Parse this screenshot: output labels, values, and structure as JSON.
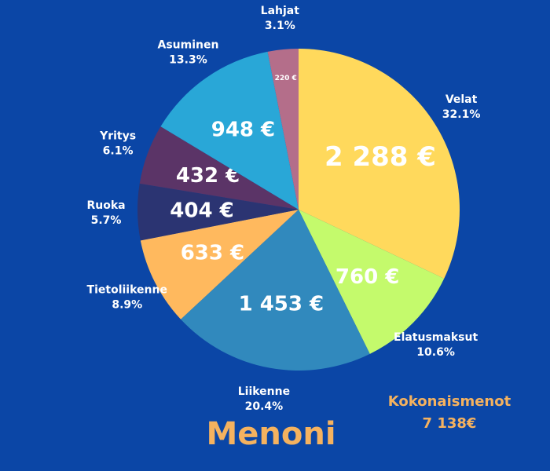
{
  "chart_data": {
    "type": "pie",
    "title": "Menoni",
    "categories": [
      "Velat",
      "Elatusmaksut",
      "Liikenne",
      "Tietoliikenne",
      "Ruoka",
      "Yritys",
      "Asuminen",
      "Lahjat"
    ],
    "values": [
      2288,
      760,
      1453,
      633,
      404,
      432,
      948,
      220
    ],
    "value_labels": [
      "2 288 €",
      "760 €",
      "1 453 €",
      "633 €",
      "404 €",
      "432 €",
      "948 €",
      "220 €"
    ],
    "percent_labels": [
      "32.1%",
      "10.6%",
      "20.4%",
      "8.9%",
      "5.7%",
      "6.1%",
      "13.3%",
      "3.1%"
    ],
    "colors": [
      "#ffd95c",
      "#c4fa6c",
      "#3189bd",
      "#ffb95e",
      "#2b3472",
      "#5b3467",
      "#29a7d7",
      "#b46e8a"
    ],
    "total_label": "Kokonaismenot",
    "total_value_label": "7 138€"
  }
}
